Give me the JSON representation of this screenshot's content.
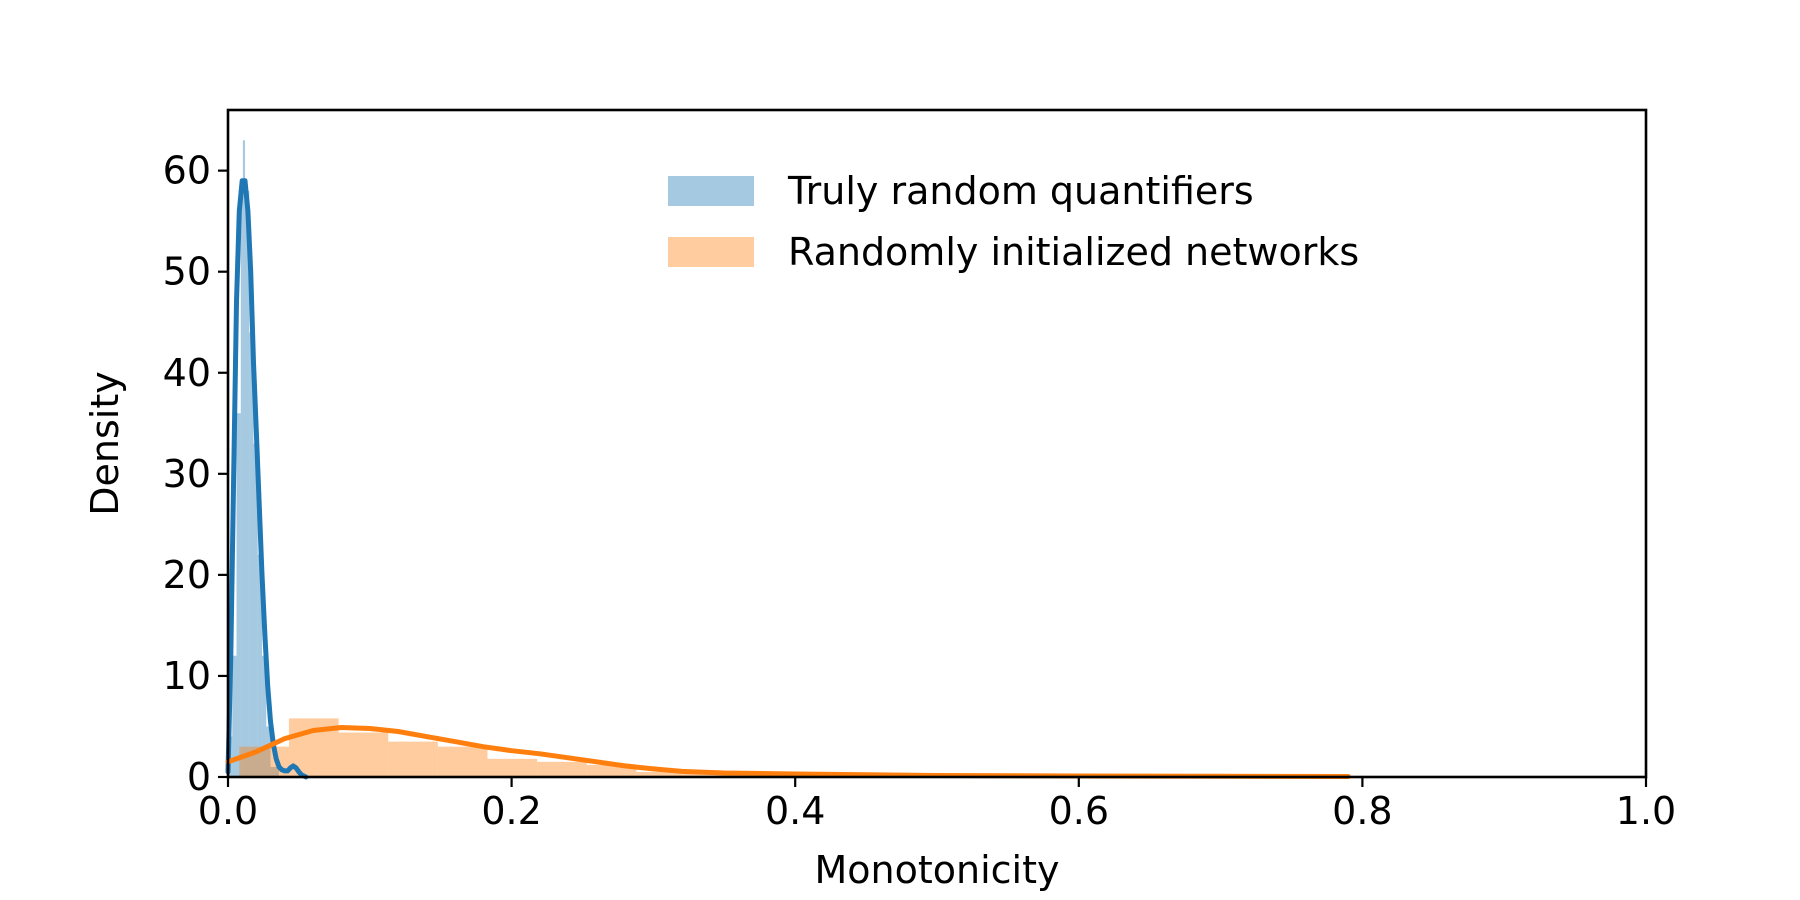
{
  "chart_data": {
    "type": "area",
    "xlabel": "Monotonicity",
    "ylabel": "Density",
    "xlim": [
      0.0,
      1.0
    ],
    "ylim": [
      0,
      66
    ],
    "xticks": [
      0.0,
      0.2,
      0.4,
      0.6,
      0.8,
      1.0
    ],
    "xtick_labels": [
      "0.0",
      "0.2",
      "0.4",
      "0.6",
      "0.8",
      "1.0"
    ],
    "yticks": [
      0,
      10,
      20,
      30,
      40,
      50,
      60
    ],
    "ytick_labels": [
      "0",
      "10",
      "20",
      "30",
      "40",
      "50",
      "60"
    ],
    "grid": false,
    "legend_position": "top-center",
    "series": [
      {
        "name": "Truly random quantifiers",
        "color": "#1f77b4",
        "histogram": {
          "bin_edges": [
            0.0,
            0.003,
            0.006,
            0.009,
            0.0105,
            0.012,
            0.015,
            0.018,
            0.021,
            0.024,
            0.027,
            0.03,
            0.036
          ],
          "values": [
            4,
            12,
            36,
            59,
            63,
            58,
            44,
            33,
            22,
            12,
            5,
            1
          ]
        },
        "kde": {
          "x": [
            0.0,
            0.002,
            0.004,
            0.006,
            0.008,
            0.01,
            0.012,
            0.014,
            0.016,
            0.018,
            0.02,
            0.022,
            0.024,
            0.026,
            0.028,
            0.03,
            0.032,
            0.034,
            0.036,
            0.038,
            0.04,
            0.042,
            0.044,
            0.046,
            0.048,
            0.05,
            0.052,
            0.055
          ],
          "y": [
            0.5,
            12,
            30,
            47,
            56,
            59,
            59,
            56,
            50,
            41,
            34,
            27,
            20,
            14,
            9,
            5.5,
            3.2,
            1.8,
            1.0,
            0.7,
            0.6,
            0.6,
            0.9,
            1.1,
            0.9,
            0.5,
            0.2,
            0.0
          ]
        }
      },
      {
        "name": "Randomly initialized networks",
        "color": "#ff7f0e",
        "histogram": {
          "bin_edges": [
            0.008,
            0.043,
            0.078,
            0.113,
            0.148,
            0.183,
            0.218,
            0.253,
            0.288,
            0.323,
            0.358,
            0.393,
            0.79
          ],
          "values": [
            3,
            5.8,
            4.4,
            3.5,
            3,
            1.8,
            1.5,
            1.2,
            0.5,
            0.3,
            0.2,
            0.05
          ]
        },
        "kde": {
          "x": [
            0.0,
            0.02,
            0.04,
            0.06,
            0.08,
            0.1,
            0.12,
            0.14,
            0.16,
            0.18,
            0.2,
            0.22,
            0.24,
            0.26,
            0.28,
            0.3,
            0.32,
            0.35,
            0.4,
            0.5,
            0.6,
            0.7,
            0.79
          ],
          "y": [
            1.5,
            2.5,
            3.8,
            4.6,
            4.9,
            4.8,
            4.5,
            4.0,
            3.5,
            3.0,
            2.6,
            2.3,
            1.9,
            1.5,
            1.1,
            0.8,
            0.55,
            0.4,
            0.3,
            0.15,
            0.1,
            0.08,
            0.05
          ]
        }
      }
    ]
  }
}
